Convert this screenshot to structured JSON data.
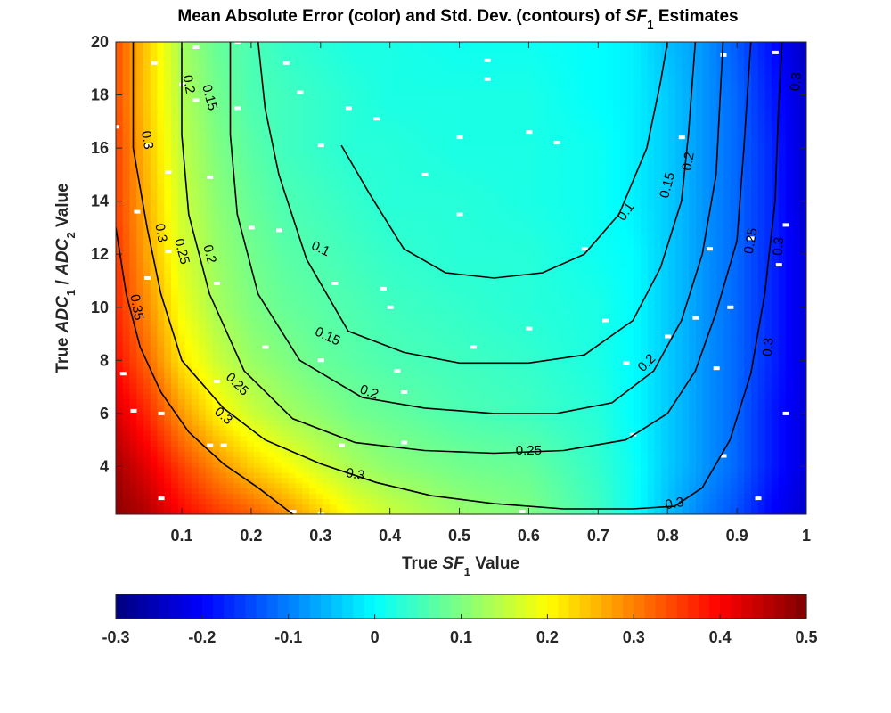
{
  "chart_data": {
    "type": "heatmap",
    "title_parts": [
      {
        "text": "Mean Absolute Error (color) and Std. Dev. (contours) of ",
        "style": "normal"
      },
      {
        "text": "SF",
        "style": "italic"
      },
      {
        "text": "1",
        "style": "sub"
      },
      {
        "text": " Estimates",
        "style": "normal"
      }
    ],
    "xlabel_parts": [
      {
        "text": "True ",
        "style": "normal"
      },
      {
        "text": "SF",
        "style": "italic"
      },
      {
        "text": "1",
        "style": "sub"
      },
      {
        "text": " Value",
        "style": "normal"
      }
    ],
    "ylabel_parts": [
      {
        "text": "True ",
        "style": "normal"
      },
      {
        "text": "ADC",
        "style": "italic"
      },
      {
        "text": "1",
        "style": "sub"
      },
      {
        "text": " / ",
        "style": "normal"
      },
      {
        "text": "ADC",
        "style": "italic"
      },
      {
        "text": "2",
        "style": "sub"
      },
      {
        "text": " Value",
        "style": "normal"
      }
    ],
    "xlim": [
      0.005,
      1.0
    ],
    "ylim": [
      2.2,
      20
    ],
    "x_ticks": [
      {
        "value": 0.1,
        "label": "0.1"
      },
      {
        "value": 0.2,
        "label": "0.2"
      },
      {
        "value": 0.3,
        "label": "0.3"
      },
      {
        "value": 0.4,
        "label": "0.4"
      },
      {
        "value": 0.5,
        "label": "0.5"
      },
      {
        "value": 0.6,
        "label": "0.6"
      },
      {
        "value": 0.7,
        "label": "0.7"
      },
      {
        "value": 0.8,
        "label": "0.8"
      },
      {
        "value": 0.9,
        "label": "0.9"
      },
      {
        "value": 1.0,
        "label": "1"
      }
    ],
    "y_ticks": [
      {
        "value": 4,
        "label": "4"
      },
      {
        "value": 6,
        "label": "6"
      },
      {
        "value": 8,
        "label": "8"
      },
      {
        "value": 10,
        "label": "10"
      },
      {
        "value": 12,
        "label": "12"
      },
      {
        "value": 14,
        "label": "14"
      },
      {
        "value": 16,
        "label": "16"
      },
      {
        "value": 18,
        "label": "18"
      },
      {
        "value": 20,
        "label": "20"
      }
    ],
    "colormap": "jet",
    "color_limits": [
      -0.3,
      0.5
    ],
    "colorbar": {
      "location": "below",
      "ticks": [
        {
          "value": -0.3,
          "label": "-0.3"
        },
        {
          "value": -0.2,
          "label": "-0.2"
        },
        {
          "value": -0.1,
          "label": "-0.1"
        },
        {
          "value": 0,
          "label": "0"
        },
        {
          "value": 0.1,
          "label": "0.1"
        },
        {
          "value": 0.2,
          "label": "0.2"
        },
        {
          "value": 0.3,
          "label": "0.3"
        },
        {
          "value": 0.4,
          "label": "0.4"
        },
        {
          "value": 0.5,
          "label": "0.5"
        }
      ]
    },
    "heatmap_grid": {
      "x": [
        0.005,
        0.05,
        0.1,
        0.15,
        0.2,
        0.25,
        0.3,
        0.35,
        0.4,
        0.5,
        0.6,
        0.7,
        0.75,
        0.8,
        0.85,
        0.9,
        0.95,
        1.0
      ],
      "y": [
        2.2,
        4,
        6,
        8,
        10,
        12,
        14,
        16,
        18,
        20
      ],
      "z": [
        [
          0.49,
          0.46,
          0.4,
          0.36,
          0.33,
          0.29,
          0.24,
          0.19,
          0.16,
          0.12,
          0.1,
          0.05,
          0.01,
          -0.05,
          -0.1,
          -0.14,
          -0.2,
          -0.24
        ],
        [
          0.47,
          0.42,
          0.35,
          0.29,
          0.24,
          0.2,
          0.16,
          0.13,
          0.11,
          0.09,
          0.08,
          0.04,
          0.01,
          -0.04,
          -0.08,
          -0.12,
          -0.18,
          -0.23
        ],
        [
          0.43,
          0.37,
          0.28,
          0.21,
          0.16,
          0.13,
          0.11,
          0.09,
          0.08,
          0.06,
          0.05,
          0.03,
          0.0,
          -0.04,
          -0.08,
          -0.12,
          -0.18,
          -0.23
        ],
        [
          0.39,
          0.32,
          0.22,
          0.16,
          0.12,
          0.1,
          0.08,
          0.07,
          0.06,
          0.05,
          0.04,
          0.02,
          0.0,
          -0.04,
          -0.08,
          -0.12,
          -0.17,
          -0.23
        ],
        [
          0.37,
          0.29,
          0.19,
          0.13,
          0.1,
          0.08,
          0.07,
          0.06,
          0.05,
          0.04,
          0.03,
          0.02,
          0.0,
          -0.04,
          -0.08,
          -0.12,
          -0.17,
          -0.23
        ],
        [
          0.36,
          0.27,
          0.17,
          0.12,
          0.09,
          0.07,
          0.06,
          0.05,
          0.04,
          0.03,
          0.03,
          0.01,
          0.0,
          -0.04,
          -0.08,
          -0.12,
          -0.17,
          -0.23
        ],
        [
          0.35,
          0.26,
          0.16,
          0.11,
          0.08,
          0.06,
          0.05,
          0.04,
          0.03,
          0.03,
          0.02,
          0.01,
          -0.01,
          -0.04,
          -0.08,
          -0.12,
          -0.17,
          -0.24
        ],
        [
          0.35,
          0.25,
          0.15,
          0.1,
          0.07,
          0.05,
          0.04,
          0.03,
          0.03,
          0.02,
          0.02,
          0.01,
          -0.01,
          -0.04,
          -0.08,
          -0.12,
          -0.17,
          -0.24
        ],
        [
          0.34,
          0.24,
          0.14,
          0.09,
          0.06,
          0.05,
          0.04,
          0.03,
          0.02,
          0.02,
          0.02,
          0.0,
          -0.01,
          -0.04,
          -0.08,
          -0.12,
          -0.18,
          -0.24
        ],
        [
          0.34,
          0.24,
          0.13,
          0.08,
          0.06,
          0.04,
          0.03,
          0.02,
          0.02,
          0.01,
          0.01,
          0.0,
          -0.01,
          -0.05,
          -0.08,
          -0.13,
          -0.19,
          -0.25
        ]
      ]
    },
    "contours": [
      {
        "level_label": "0.1",
        "points": [
          [
            0.33,
            16.1
          ],
          [
            0.37,
            14.3
          ],
          [
            0.42,
            12.2
          ],
          [
            0.48,
            11.3
          ],
          [
            0.55,
            11.1
          ],
          [
            0.62,
            11.3
          ],
          [
            0.68,
            12.0
          ],
          [
            0.73,
            13.5
          ],
          [
            0.77,
            16.0
          ],
          [
            0.79,
            18.5
          ],
          [
            0.8,
            20
          ]
        ]
      },
      {
        "level_label": "0.15",
        "points": [
          [
            0.21,
            20
          ],
          [
            0.22,
            17.5
          ],
          [
            0.24,
            15.0
          ],
          [
            0.28,
            11.8
          ],
          [
            0.34,
            9.1
          ],
          [
            0.42,
            8.3
          ],
          [
            0.5,
            7.9
          ],
          [
            0.6,
            7.9
          ],
          [
            0.68,
            8.2
          ],
          [
            0.75,
            9.5
          ],
          [
            0.79,
            11.5
          ],
          [
            0.82,
            14.0
          ],
          [
            0.83,
            16.5
          ],
          [
            0.84,
            20
          ]
        ]
      },
      {
        "level_label": "0.2",
        "points": [
          [
            0.17,
            20
          ],
          [
            0.17,
            16.5
          ],
          [
            0.18,
            13.5
          ],
          [
            0.21,
            10.5
          ],
          [
            0.27,
            8.0
          ],
          [
            0.36,
            6.6
          ],
          [
            0.45,
            6.2
          ],
          [
            0.55,
            6.0
          ],
          [
            0.64,
            6.0
          ],
          [
            0.72,
            6.4
          ],
          [
            0.78,
            7.6
          ],
          [
            0.82,
            9.5
          ],
          [
            0.85,
            12.0
          ],
          [
            0.87,
            15.0
          ],
          [
            0.88,
            20
          ]
        ]
      },
      {
        "level_label": "0.25",
        "points": [
          [
            0.1,
            20
          ],
          [
            0.1,
            16.5
          ],
          [
            0.11,
            13.5
          ],
          [
            0.14,
            10.5
          ],
          [
            0.19,
            7.6
          ],
          [
            0.26,
            5.8
          ],
          [
            0.35,
            4.9
          ],
          [
            0.45,
            4.6
          ],
          [
            0.55,
            4.5
          ],
          [
            0.65,
            4.6
          ],
          [
            0.74,
            5.0
          ],
          [
            0.8,
            6.0
          ],
          [
            0.84,
            7.6
          ],
          [
            0.87,
            9.8
          ],
          [
            0.9,
            12.5
          ],
          [
            0.91,
            16.0
          ],
          [
            0.92,
            20
          ]
        ]
      },
      {
        "level_label": "0.3",
        "points": [
          [
            0.03,
            20
          ],
          [
            0.03,
            16.0
          ],
          [
            0.05,
            13.0
          ],
          [
            0.07,
            10.5
          ],
          [
            0.1,
            8.0
          ],
          [
            0.16,
            6.2
          ],
          [
            0.22,
            5.0
          ],
          [
            0.3,
            4.1
          ],
          [
            0.38,
            3.4
          ],
          [
            0.46,
            2.9
          ],
          [
            0.55,
            2.6
          ],
          [
            0.65,
            2.4
          ],
          [
            0.75,
            2.4
          ],
          [
            0.81,
            2.5
          ],
          [
            0.85,
            3.2
          ],
          [
            0.89,
            5.0
          ],
          [
            0.92,
            7.5
          ],
          [
            0.94,
            10.5
          ],
          [
            0.955,
            14.0
          ],
          [
            0.96,
            17.5
          ],
          [
            0.965,
            20
          ]
        ]
      },
      {
        "level_label": "0.35",
        "points": [
          [
            0.005,
            13.0
          ],
          [
            0.02,
            10.5
          ],
          [
            0.04,
            8.5
          ],
          [
            0.07,
            6.8
          ],
          [
            0.11,
            5.3
          ],
          [
            0.16,
            4.1
          ],
          [
            0.21,
            3.2
          ],
          [
            0.24,
            2.6
          ],
          [
            0.26,
            2.2
          ]
        ]
      }
    ],
    "contour_labels": [
      {
        "text": "0.1",
        "x": 0.3,
        "y": 12.2,
        "angle": 25
      },
      {
        "text": "0.1",
        "x": 0.74,
        "y": 13.6,
        "angle": -55
      },
      {
        "text": "0.15",
        "x": 0.14,
        "y": 17.9,
        "angle": 75
      },
      {
        "text": "0.15",
        "x": 0.31,
        "y": 8.9,
        "angle": 25
      },
      {
        "text": "0.15",
        "x": 0.8,
        "y": 14.6,
        "angle": -75
      },
      {
        "text": "0.2",
        "x": 0.11,
        "y": 18.4,
        "angle": 80
      },
      {
        "text": "0.2",
        "x": 0.14,
        "y": 12.0,
        "angle": 75
      },
      {
        "text": "0.2",
        "x": 0.37,
        "y": 6.8,
        "angle": 20
      },
      {
        "text": "0.2",
        "x": 0.83,
        "y": 15.5,
        "angle": -80
      },
      {
        "text": "0.2",
        "x": 0.77,
        "y": 7.9,
        "angle": -45
      },
      {
        "text": "0.25",
        "x": 0.1,
        "y": 12.1,
        "angle": 75
      },
      {
        "text": "0.25",
        "x": 0.18,
        "y": 7.1,
        "angle": 45
      },
      {
        "text": "0.25",
        "x": 0.6,
        "y": 4.6,
        "angle": 0
      },
      {
        "text": "0.25",
        "x": 0.92,
        "y": 12.5,
        "angle": -80
      },
      {
        "text": "0.3",
        "x": 0.05,
        "y": 16.3,
        "angle": 80
      },
      {
        "text": "0.3",
        "x": 0.07,
        "y": 12.8,
        "angle": 80
      },
      {
        "text": "0.3",
        "x": 0.16,
        "y": 5.9,
        "angle": 40
      },
      {
        "text": "0.3",
        "x": 0.35,
        "y": 3.7,
        "angle": 10
      },
      {
        "text": "0.3",
        "x": 0.81,
        "y": 2.6,
        "angle": -10
      },
      {
        "text": "0.3",
        "x": 0.96,
        "y": 12.3,
        "angle": -85
      },
      {
        "text": "0.3",
        "x": 0.985,
        "y": 18.5,
        "angle": -85
      },
      {
        "text": "0.3",
        "x": 0.945,
        "y": 8.5,
        "angle": -85
      },
      {
        "text": "0.35",
        "x": 0.035,
        "y": 10.0,
        "angle": 80
      }
    ],
    "missing_cells": [
      [
        0.005,
        16.8
      ],
      [
        0.015,
        7.5
      ],
      [
        0.03,
        6.1
      ],
      [
        0.05,
        16.1
      ],
      [
        0.035,
        13.6
      ],
      [
        0.05,
        11.1
      ],
      [
        0.06,
        19.2
      ],
      [
        0.08,
        15.1
      ],
      [
        0.08,
        12.1
      ],
      [
        0.07,
        6.0
      ],
      [
        0.07,
        2.8
      ],
      [
        0.1,
        18.4
      ],
      [
        0.12,
        19.8
      ],
      [
        0.12,
        17.8
      ],
      [
        0.14,
        14.9
      ],
      [
        0.15,
        10.9
      ],
      [
        0.15,
        7.2
      ],
      [
        0.14,
        4.8
      ],
      [
        0.16,
        4.8
      ],
      [
        0.18,
        20
      ],
      [
        0.18,
        17.5
      ],
      [
        0.2,
        13.0
      ],
      [
        0.22,
        8.5
      ],
      [
        0.24,
        12.9
      ],
      [
        0.25,
        19.2
      ],
      [
        0.27,
        18.1
      ],
      [
        0.3,
        16.1
      ],
      [
        0.3,
        8.0
      ],
      [
        0.32,
        10.9
      ],
      [
        0.33,
        4.8
      ],
      [
        0.34,
        17.5
      ],
      [
        0.38,
        17.1
      ],
      [
        0.39,
        10.7
      ],
      [
        0.4,
        10.0
      ],
      [
        0.41,
        7.6
      ],
      [
        0.42,
        6.8
      ],
      [
        0.42,
        4.9
      ],
      [
        0.45,
        15.0
      ],
      [
        0.5,
        13.5
      ],
      [
        0.5,
        16.4
      ],
      [
        0.52,
        8.5
      ],
      [
        0.54,
        19.3
      ],
      [
        0.54,
        18.6
      ],
      [
        0.6,
        9.2
      ],
      [
        0.6,
        16.6
      ],
      [
        0.64,
        16.2
      ],
      [
        0.68,
        12.2
      ],
      [
        0.71,
        9.5
      ],
      [
        0.74,
        7.9
      ],
      [
        0.75,
        5.2
      ],
      [
        0.8,
        8.9
      ],
      [
        0.82,
        16.4
      ],
      [
        0.84,
        9.6
      ],
      [
        0.86,
        12.2
      ],
      [
        0.87,
        7.7
      ],
      [
        0.88,
        4.4
      ],
      [
        0.88,
        19.5
      ],
      [
        0.89,
        10.0
      ],
      [
        0.92,
        12.6
      ],
      [
        0.93,
        2.8
      ],
      [
        0.96,
        11.6
      ],
      [
        0.97,
        13.1
      ],
      [
        0.97,
        6.0
      ],
      [
        0.955,
        19.6
      ],
      [
        0.26,
        2.3
      ],
      [
        0.59,
        2.3
      ],
      [
        0.3,
        2.2
      ]
    ]
  }
}
